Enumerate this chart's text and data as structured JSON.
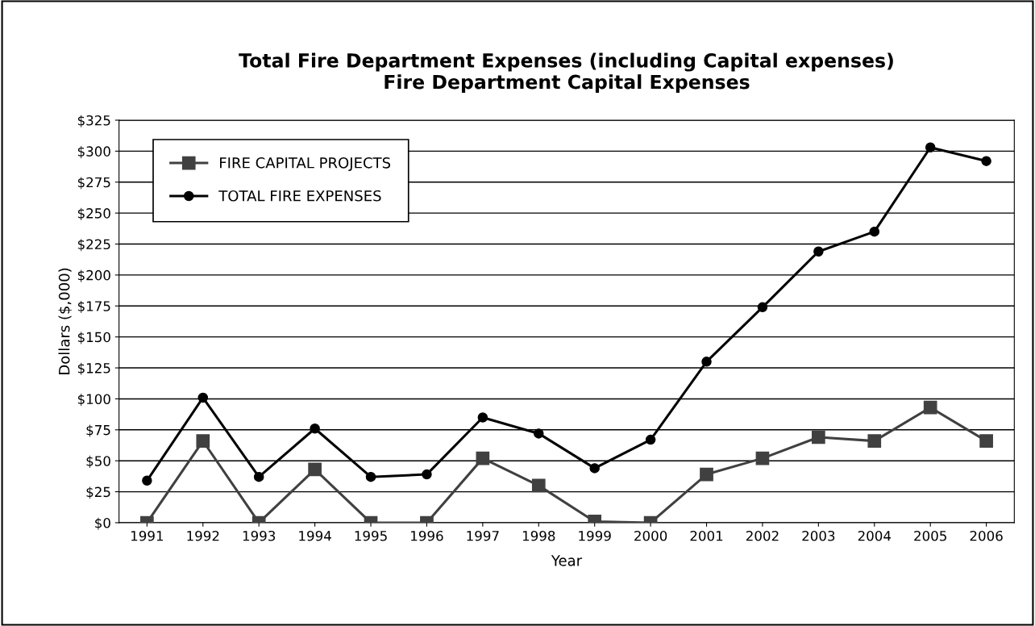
{
  "chart_data": {
    "type": "line",
    "title": "Total Fire Department Expenses (including Capital expenses)\nFire Department Capital Expenses",
    "xlabel": "Year",
    "ylabel": "Dollars ($,000)",
    "categories": [
      "1991",
      "1992",
      "1993",
      "1994",
      "1995",
      "1996",
      "1997",
      "1998",
      "1999",
      "2000",
      "2001",
      "2002",
      "2003",
      "2004",
      "2005",
      "2006"
    ],
    "series": [
      {
        "name": "FIRE CAPITAL PROJECTS",
        "color": "#404040",
        "marker": "square",
        "values": [
          0,
          66,
          0,
          43,
          0,
          0,
          52,
          30,
          1,
          0,
          39,
          52,
          69,
          66,
          93,
          66
        ]
      },
      {
        "name": "TOTAL FIRE EXPENSES",
        "color": "#000000",
        "marker": "circle",
        "values": [
          34,
          101,
          37,
          76,
          37,
          39,
          85,
          72,
          44,
          67,
          130,
          174,
          219,
          235,
          303,
          292
        ]
      }
    ],
    "ylim": [
      0,
      325
    ],
    "yticks": [
      {
        "value": 0,
        "label": "$0"
      },
      {
        "value": 25,
        "label": "$25"
      },
      {
        "value": 50,
        "label": "$50"
      },
      {
        "value": 75,
        "label": "$75"
      },
      {
        "value": 100,
        "label": "$100"
      },
      {
        "value": 125,
        "label": "$125"
      },
      {
        "value": 150,
        "label": "$150"
      },
      {
        "value": 175,
        "label": "$175"
      },
      {
        "value": 200,
        "label": "$200"
      },
      {
        "value": 225,
        "label": "$225"
      },
      {
        "value": 250,
        "label": "$250"
      },
      {
        "value": 275,
        "label": "$275"
      },
      {
        "value": 300,
        "label": "$300"
      },
      {
        "value": 325,
        "label": "$325"
      }
    ],
    "grid": "y",
    "legend": "top left",
    "line_style": "solid"
  }
}
